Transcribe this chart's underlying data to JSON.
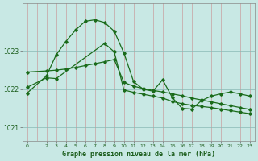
{
  "title": "Graphe pression niveau de la mer (hPa)",
  "bg_color": "#c8e8e4",
  "line_color": "#1a6b1a",
  "yticks": [
    1021,
    1022,
    1023
  ],
  "ylim": [
    1020.65,
    1024.25
  ],
  "xlim": [
    -0.5,
    23.5
  ],
  "x_ticks": [
    0,
    2,
    3,
    4,
    5,
    6,
    7,
    8,
    9,
    10,
    11,
    12,
    13,
    14,
    15,
    16,
    17,
    18,
    19,
    20,
    21,
    22,
    23
  ],
  "curve1_x": [
    0,
    2,
    3,
    4,
    5,
    6,
    7,
    8,
    9,
    10,
    11,
    12,
    13,
    14,
    15,
    16,
    17,
    18,
    19,
    20,
    21,
    22,
    23
  ],
  "curve1_y": [
    1021.9,
    1022.35,
    1022.9,
    1023.25,
    1023.55,
    1023.78,
    1023.82,
    1023.75,
    1023.52,
    1022.95,
    1022.2,
    1022.0,
    1021.95,
    1022.25,
    1021.78,
    1021.5,
    1021.48,
    1021.7,
    1021.82,
    1021.88,
    1021.93,
    1021.88,
    1021.82
  ],
  "curve2_x": [
    0,
    2,
    3,
    4,
    5,
    6,
    7,
    8,
    9,
    10,
    11,
    12,
    13,
    14,
    15,
    16,
    17,
    18,
    19,
    20,
    21,
    22,
    23
  ],
  "curve2_y": [
    1022.45,
    1022.48,
    1022.5,
    1022.53,
    1022.57,
    1022.62,
    1022.67,
    1022.72,
    1022.78,
    1022.18,
    1022.08,
    1022.02,
    1021.97,
    1021.93,
    1021.88,
    1021.83,
    1021.77,
    1021.72,
    1021.67,
    1021.62,
    1021.57,
    1021.52,
    1021.47
  ],
  "curve3_x": [
    0,
    2,
    3,
    8,
    9,
    10,
    11,
    12,
    13,
    14,
    15,
    16,
    17,
    18,
    19,
    20,
    21,
    22,
    23
  ],
  "curve3_y": [
    1022.05,
    1022.3,
    1022.28,
    1023.2,
    1022.98,
    1021.98,
    1021.92,
    1021.87,
    1021.82,
    1021.77,
    1021.68,
    1021.62,
    1021.58,
    1021.55,
    1021.52,
    1021.48,
    1021.44,
    1021.4,
    1021.36
  ]
}
